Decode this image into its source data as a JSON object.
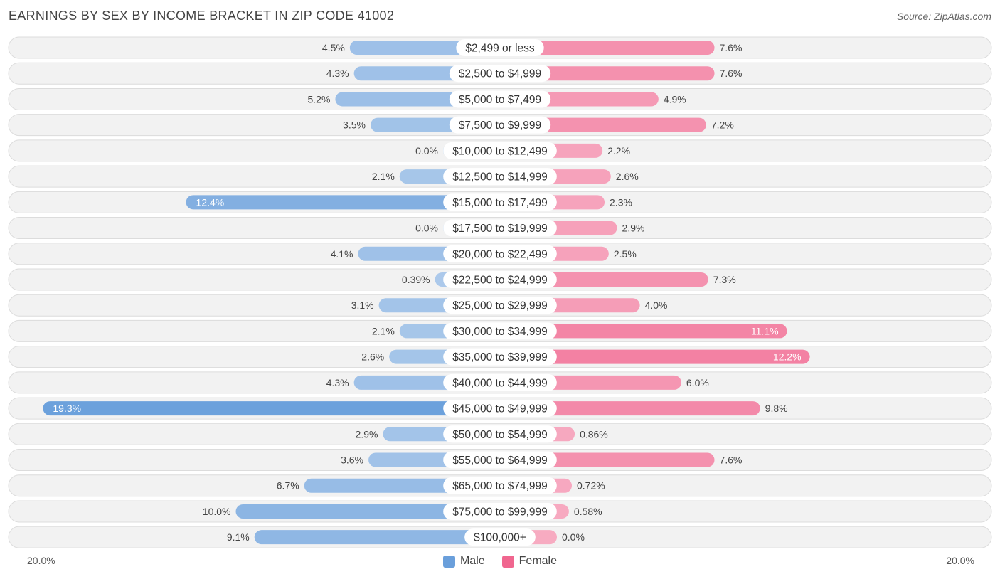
{
  "title": "EARNINGS BY SEX BY INCOME BRACKET IN ZIP CODE 41002",
  "source": "Source: ZipAtlas.com",
  "colors": {
    "male": "#6a9fdb",
    "female": "#f0668f",
    "row_bg": "#f2f2f2",
    "row_border": "#dcdcdc"
  },
  "axis": {
    "left_label": "20.0%",
    "right_label": "20.0%"
  },
  "legend": {
    "male": "Male",
    "female": "Female"
  },
  "chart_data": {
    "type": "bar",
    "orientation": "horizontal-diverging",
    "title": "EARNINGS BY SEX BY INCOME BRACKET IN ZIP CODE 41002",
    "xlim": [
      -20,
      20
    ],
    "unit": "%",
    "categories": [
      "$2,499 or less",
      "$2,500 to $4,999",
      "$5,000 to $7,499",
      "$7,500 to $9,999",
      "$10,000 to $12,499",
      "$12,500 to $14,999",
      "$15,000 to $17,499",
      "$17,500 to $19,999",
      "$20,000 to $22,499",
      "$22,500 to $24,999",
      "$25,000 to $29,999",
      "$30,000 to $34,999",
      "$35,000 to $39,999",
      "$40,000 to $44,999",
      "$45,000 to $49,999",
      "$50,000 to $54,999",
      "$55,000 to $64,999",
      "$65,000 to $74,999",
      "$75,000 to $99,999",
      "$100,000+"
    ],
    "series": [
      {
        "name": "Male",
        "values": [
          4.5,
          4.3,
          5.2,
          3.5,
          0.0,
          2.1,
          12.4,
          0.0,
          4.1,
          0.39,
          3.1,
          2.1,
          2.6,
          4.3,
          19.3,
          2.9,
          3.6,
          6.7,
          10.0,
          9.1
        ],
        "labels": [
          "4.5%",
          "4.3%",
          "5.2%",
          "3.5%",
          "0.0%",
          "2.1%",
          "12.4%",
          "0.0%",
          "4.1%",
          "0.39%",
          "3.1%",
          "2.1%",
          "2.6%",
          "4.3%",
          "19.3%",
          "2.9%",
          "3.6%",
          "6.7%",
          "10.0%",
          "9.1%"
        ]
      },
      {
        "name": "Female",
        "values": [
          7.6,
          7.6,
          4.9,
          7.2,
          2.2,
          2.6,
          2.3,
          2.9,
          2.5,
          7.3,
          4.0,
          11.1,
          12.2,
          6.0,
          9.8,
          0.86,
          7.6,
          0.72,
          0.58,
          0.0
        ],
        "labels": [
          "7.6%",
          "7.6%",
          "4.9%",
          "7.2%",
          "2.2%",
          "2.6%",
          "2.3%",
          "2.9%",
          "2.5%",
          "7.3%",
          "4.0%",
          "11.1%",
          "12.2%",
          "6.0%",
          "9.8%",
          "0.86%",
          "7.6%",
          "0.72%",
          "0.58%",
          "0.0%"
        ]
      }
    ]
  }
}
